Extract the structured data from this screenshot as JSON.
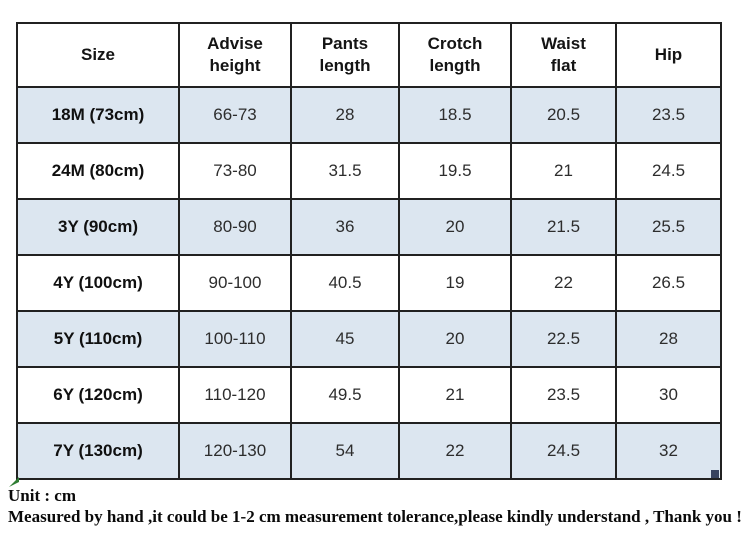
{
  "table": {
    "columns": [
      "Size",
      "Advise height",
      "Pants length",
      "Crotch length",
      "Waist flat",
      "Hip"
    ],
    "column_keys": [
      "size",
      "advise_height",
      "pants_length",
      "crotch_length",
      "waist_flat",
      "hip"
    ],
    "rows": [
      {
        "size": "18M (73cm)",
        "advise_height": "66-73",
        "pants_length": "28",
        "crotch_length": "18.5",
        "waist_flat": "20.5",
        "hip": "23.5"
      },
      {
        "size": "24M (80cm)",
        "advise_height": "73-80",
        "pants_length": "31.5",
        "crotch_length": "19.5",
        "waist_flat": "21",
        "hip": "24.5"
      },
      {
        "size": "3Y (90cm)",
        "advise_height": "80-90",
        "pants_length": "36",
        "crotch_length": "20",
        "waist_flat": "21.5",
        "hip": "25.5"
      },
      {
        "size": "4Y (100cm)",
        "advise_height": "90-100",
        "pants_length": "40.5",
        "crotch_length": "19",
        "waist_flat": "22",
        "hip": "26.5"
      },
      {
        "size": "5Y (110cm)",
        "advise_height": "100-110",
        "pants_length": "45",
        "crotch_length": "20",
        "waist_flat": "22.5",
        "hip": "28"
      },
      {
        "size": "6Y (120cm)",
        "advise_height": "110-120",
        "pants_length": "49.5",
        "crotch_length": "21",
        "waist_flat": "23.5",
        "hip": "30"
      },
      {
        "size": "7Y (130cm)",
        "advise_height": "120-130",
        "pants_length": "54",
        "crotch_length": "22",
        "waist_flat": "24.5",
        "hip": "32"
      }
    ]
  },
  "notes": {
    "unit": "Unit : cm",
    "tolerance": "Measured by hand ,it could be 1-2 cm measurement tolerance,please kindly understand , Thank you !"
  },
  "colors": {
    "row_alt": "#dce6f0",
    "border": "#212121",
    "marker_green": "#2e7d32",
    "marker_blue": "#38435f"
  }
}
